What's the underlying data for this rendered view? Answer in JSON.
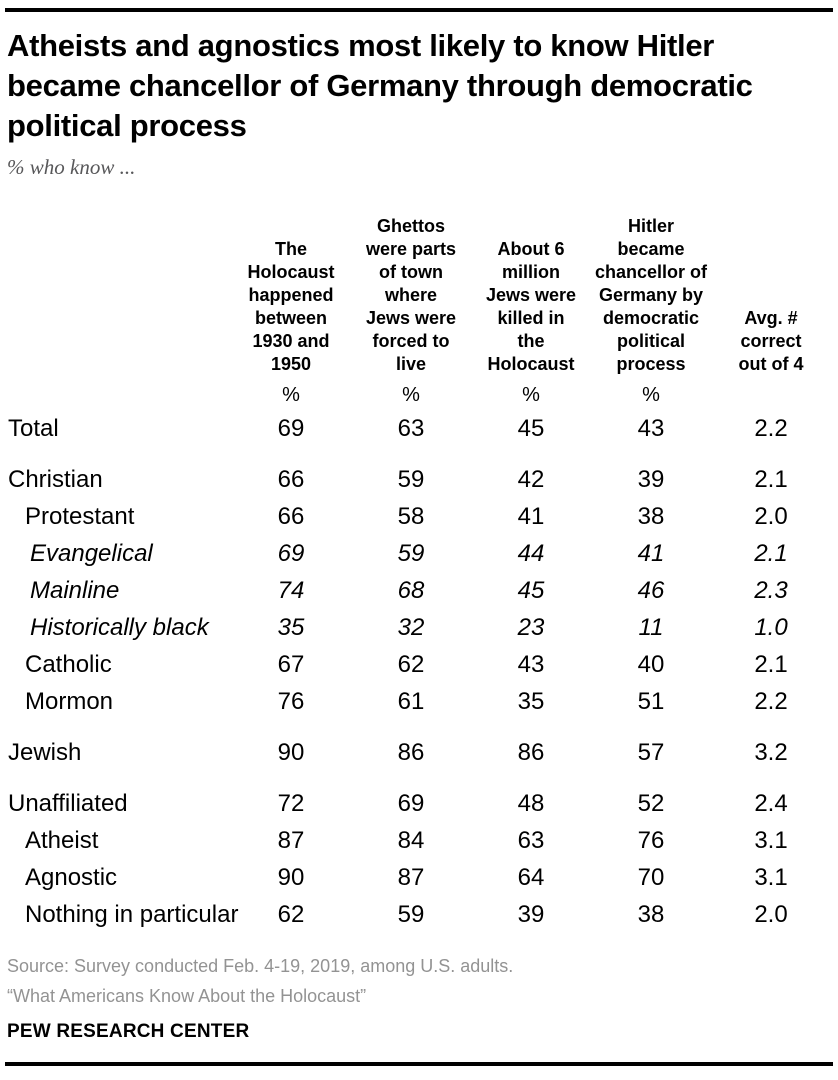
{
  "header": {
    "title_display": "Atheists and agnostics most likely to know Hitler\nbecame chancellor of Germany through democratic\npolitical process",
    "subtitle": "% who know ..."
  },
  "chart_data": {
    "type": "table",
    "title": "Atheists and agnostics most likely to know Hitler became chancellor of Germany through democratic political process",
    "subtitle": "% who know ...",
    "columns": [
      {
        "label": "The\nHolocaust\nhappened\nbetween\n1930 and\n1950",
        "unit": "%"
      },
      {
        "label": "Ghettos\nwere parts\nof town\nwhere\nJews were\nforced to\nlive",
        "unit": "%"
      },
      {
        "label": "About 6\nmillion\nJews were\nkilled in\nthe\nHolocaust",
        "unit": "%"
      },
      {
        "label": "Hitler\nbecame\nchancellor of\nGermany by\ndemocratic\npolitical\nprocess",
        "unit": "%"
      },
      {
        "label": "Avg. #\ncorrect\nout of 4",
        "unit": ""
      }
    ],
    "rows": [
      {
        "label": "Total",
        "indent": 0,
        "italic": false,
        "values": [
          "69",
          "63",
          "45",
          "43",
          "2.2"
        ]
      },
      {
        "label": "Christian",
        "indent": 0,
        "italic": false,
        "values": [
          "66",
          "59",
          "42",
          "39",
          "2.1"
        ]
      },
      {
        "label": "Protestant",
        "indent": 1,
        "italic": false,
        "values": [
          "66",
          "58",
          "41",
          "38",
          "2.0"
        ]
      },
      {
        "label": "Evangelical",
        "indent": 2,
        "italic": true,
        "values": [
          "69",
          "59",
          "44",
          "41",
          "2.1"
        ]
      },
      {
        "label": "Mainline",
        "indent": 2,
        "italic": true,
        "values": [
          "74",
          "68",
          "45",
          "46",
          "2.3"
        ]
      },
      {
        "label": "Historically black",
        "indent": 2,
        "italic": true,
        "values": [
          "35",
          "32",
          "23",
          "11",
          "1.0"
        ]
      },
      {
        "label": "Catholic",
        "indent": 1,
        "italic": false,
        "values": [
          "67",
          "62",
          "43",
          "40",
          "2.1"
        ]
      },
      {
        "label": "Mormon",
        "indent": 1,
        "italic": false,
        "values": [
          "76",
          "61",
          "35",
          "51",
          "2.2"
        ]
      },
      {
        "label": "Jewish",
        "indent": 0,
        "italic": false,
        "values": [
          "90",
          "86",
          "86",
          "57",
          "3.2"
        ]
      },
      {
        "label": "Unaffiliated",
        "indent": 0,
        "italic": false,
        "values": [
          "72",
          "69",
          "48",
          "52",
          "2.4"
        ]
      },
      {
        "label": "Atheist",
        "indent": 1,
        "italic": false,
        "values": [
          "87",
          "84",
          "63",
          "76",
          "3.1"
        ]
      },
      {
        "label": "Agnostic",
        "indent": 1,
        "italic": false,
        "values": [
          "90",
          "87",
          "64",
          "70",
          "3.1"
        ]
      },
      {
        "label": "Nothing in particular",
        "indent": 1,
        "italic": false,
        "values": [
          "62",
          "59",
          "39",
          "38",
          "2.0"
        ]
      }
    ]
  },
  "footer": {
    "source": "Source: Survey conducted Feb. 4-19, 2019, among U.S. adults.",
    "citation": "“What Americans Know About the Holocaust”",
    "brand": "PEW RESEARCH CENTER"
  }
}
